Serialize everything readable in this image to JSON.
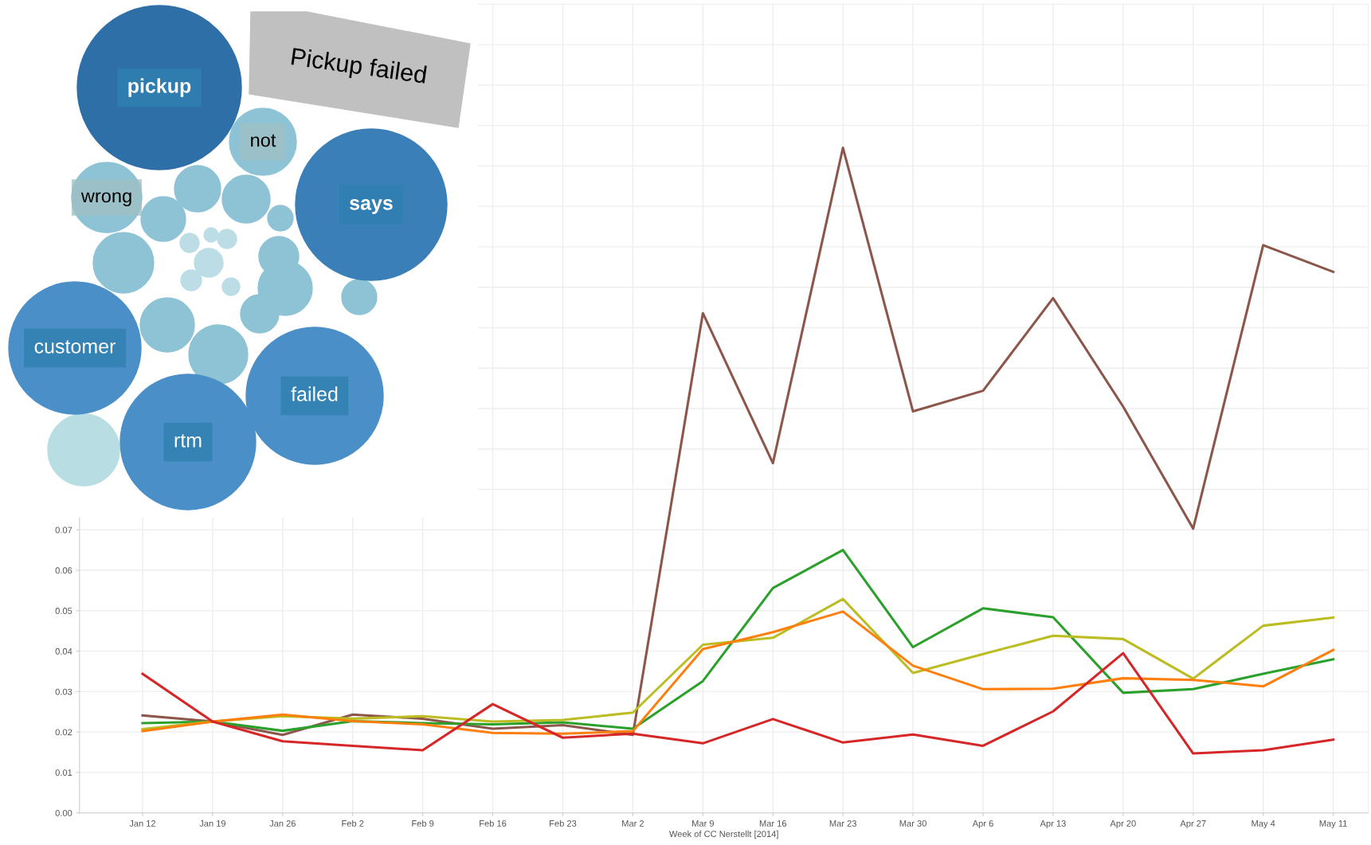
{
  "chart_data": [
    {
      "type": "line",
      "xlabel": "Week of CC Nerstellt [2014]",
      "categories": [
        "Jan 12",
        "Jan 19",
        "Jan 26",
        "Feb 2",
        "Feb 9",
        "Feb 16",
        "Feb 23",
        "Mar 2",
        "Mar 9",
        "Mar 16",
        "Mar 23",
        "Mar 30",
        "Apr 6",
        "Apr 13",
        "Apr 20",
        "Apr 27",
        "May 4",
        "May 11"
      ],
      "series": [
        {
          "color": "#8c564b",
          "values": [
            0.0241,
            0.0226,
            0.0193,
            0.0243,
            0.0233,
            0.0208,
            0.0217,
            0.0193,
            0.1236,
            0.0865,
            0.1645,
            0.0993,
            0.1044,
            0.1273,
            0.1005,
            0.0703,
            0.1404,
            0.1338
          ]
        },
        {
          "color": "#2ca02c",
          "values": [
            0.0222,
            0.0226,
            0.0203,
            0.0227,
            0.0222,
            0.0219,
            0.0224,
            0.0208,
            0.0326,
            0.0556,
            0.065,
            0.041,
            0.0506,
            0.0484,
            0.0297,
            0.0306,
            0.0344,
            0.038
          ]
        },
        {
          "color": "#bcbd22",
          "values": [
            0.0207,
            0.0226,
            0.0239,
            0.0233,
            0.0239,
            0.0226,
            0.023,
            0.0248,
            0.0416,
            0.0433,
            0.0529,
            0.0346,
            0.0393,
            0.0438,
            0.043,
            0.0332,
            0.0463,
            0.0483
          ]
        },
        {
          "color": "#ff7f0e",
          "values": [
            0.0202,
            0.0226,
            0.0243,
            0.0227,
            0.0219,
            0.0198,
            0.0196,
            0.0202,
            0.0405,
            0.0447,
            0.0498,
            0.0364,
            0.0306,
            0.0307,
            0.0333,
            0.0329,
            0.0313,
            0.0403
          ]
        },
        {
          "color": "#d62728",
          "values": [
            0.0344,
            0.0226,
            0.0177,
            0.0166,
            0.0155,
            0.0269,
            0.0186,
            0.0196,
            0.0172,
            0.0232,
            0.0174,
            0.0194,
            0.0166,
            0.0251,
            0.0395,
            0.0147,
            0.0155,
            0.0181
          ]
        }
      ],
      "ylim": [
        0,
        0.2
      ],
      "yticks": [
        {
          "value": 0,
          "label": "0.00"
        },
        {
          "value": 0.01,
          "label": "0.01"
        },
        {
          "value": 0.02,
          "label": "0.02"
        },
        {
          "value": 0.03,
          "label": "0.03"
        },
        {
          "value": 0.04,
          "label": "0.04"
        },
        {
          "value": 0.05,
          "label": "0.05"
        },
        {
          "value": 0.06,
          "label": "0.06"
        },
        {
          "value": 0.07,
          "label": "0.07"
        },
        {
          "value": 0.08,
          "label": null
        },
        {
          "value": 0.09,
          "label": null
        },
        {
          "value": 0.1,
          "label": null
        },
        {
          "value": 0.11,
          "label": null
        },
        {
          "value": 0.12,
          "label": null
        },
        {
          "value": 0.13,
          "label": null
        },
        {
          "value": 0.14,
          "label": null
        },
        {
          "value": 0.15,
          "label": null
        },
        {
          "value": 0.16,
          "label": null
        },
        {
          "value": 0.17,
          "label": null
        },
        {
          "value": 0.18,
          "label": null
        },
        {
          "value": 0.19,
          "label": null
        },
        {
          "value": 0.2,
          "label": null
        }
      ],
      "grid": true,
      "marker": "none",
      "line_style": "solid"
    },
    {
      "type": "other",
      "title": "Pickup failed",
      "categories": [
        "pickup",
        "not",
        "says",
        "wrong",
        "customer",
        "failed",
        "rtm"
      ],
      "colors": [
        "#2e6fa8",
        "#8ec3d6",
        "#3a7fb8",
        "#8ec3d6",
        "#4a8fc8",
        "#4a8fc8",
        "#4a8fc8"
      ]
    }
  ]
}
